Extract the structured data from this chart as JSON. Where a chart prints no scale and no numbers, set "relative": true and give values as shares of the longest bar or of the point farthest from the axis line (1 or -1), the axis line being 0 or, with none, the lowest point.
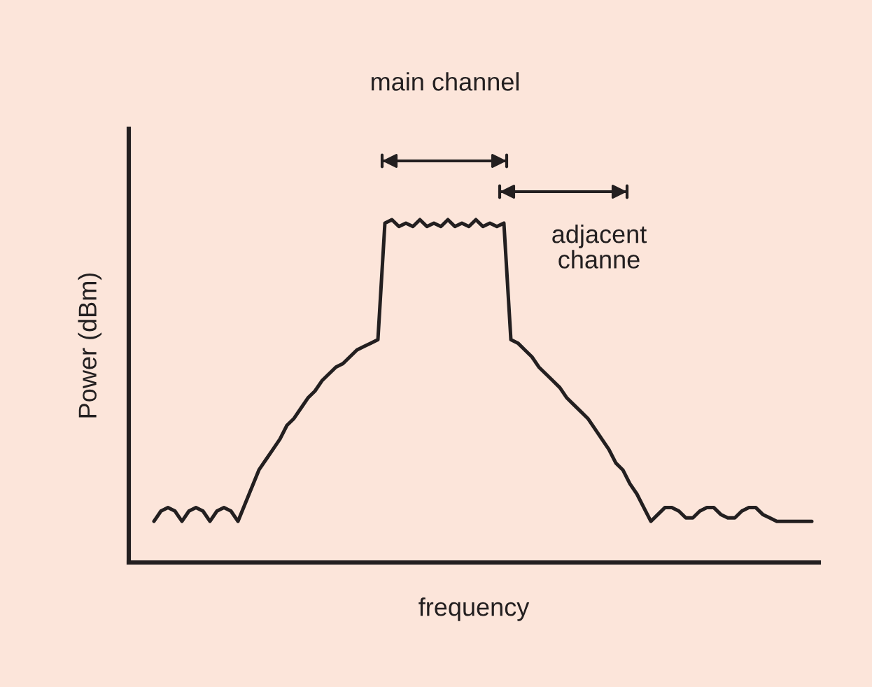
{
  "chart_data": {
    "type": "line",
    "relative": true,
    "xlabel": "frequency",
    "ylabel": "Power (dBm)",
    "color": "#231f20",
    "marker": "none",
    "line_style": "solid",
    "tick_labels": false,
    "annotations": [
      "main channel",
      "adjacent\nchanne"
    ],
    "categories": [
      null,
      null,
      null,
      null,
      null,
      null,
      null,
      null,
      null,
      null,
      null,
      null,
      null,
      null,
      null,
      null,
      null,
      null,
      null,
      null,
      null,
      null,
      null,
      null,
      null,
      null,
      null,
      null,
      null,
      null,
      null,
      null,
      null,
      null,
      null,
      null,
      null,
      null,
      null,
      null,
      null,
      null,
      null,
      null,
      null,
      null,
      null,
      null,
      null,
      null,
      null,
      null,
      null,
      null,
      null,
      null,
      null,
      null,
      null,
      null,
      null,
      null,
      null,
      null,
      null,
      null,
      null,
      null,
      null,
      null,
      null,
      null,
      null,
      null,
      null,
      null,
      null,
      null,
      null,
      null,
      null,
      null,
      null,
      null,
      null,
      null,
      null,
      null,
      null,
      null,
      null,
      null,
      null,
      null,
      null
    ],
    "values": [
      0.12,
      0.15,
      0.16,
      0.15,
      0.12,
      0.15,
      0.16,
      0.15,
      0.12,
      0.15,
      0.16,
      0.15,
      0.12,
      0.17,
      0.22,
      0.27,
      0.3,
      0.33,
      0.36,
      0.4,
      0.42,
      0.45,
      0.48,
      0.5,
      0.53,
      0.55,
      0.57,
      0.58,
      0.6,
      0.62,
      0.63,
      0.64,
      0.65,
      0.99,
      1.0,
      0.98,
      0.99,
      0.98,
      1.0,
      0.98,
      0.99,
      0.98,
      1.0,
      0.98,
      0.99,
      0.98,
      1.0,
      0.98,
      0.99,
      0.98,
      0.99,
      0.65,
      0.64,
      0.62,
      0.6,
      0.57,
      0.55,
      0.53,
      0.51,
      0.48,
      0.46,
      0.44,
      0.42,
      0.39,
      0.36,
      0.33,
      0.29,
      0.27,
      0.23,
      0.2,
      0.16,
      0.12,
      0.14,
      0.16,
      0.16,
      0.15,
      0.13,
      0.13,
      0.15,
      0.16,
      0.16,
      0.14,
      0.13,
      0.13,
      0.15,
      0.16,
      0.16,
      0.14,
      0.13,
      0.12,
      0.12,
      0.12,
      0.12,
      0.12,
      0.12
    ]
  }
}
